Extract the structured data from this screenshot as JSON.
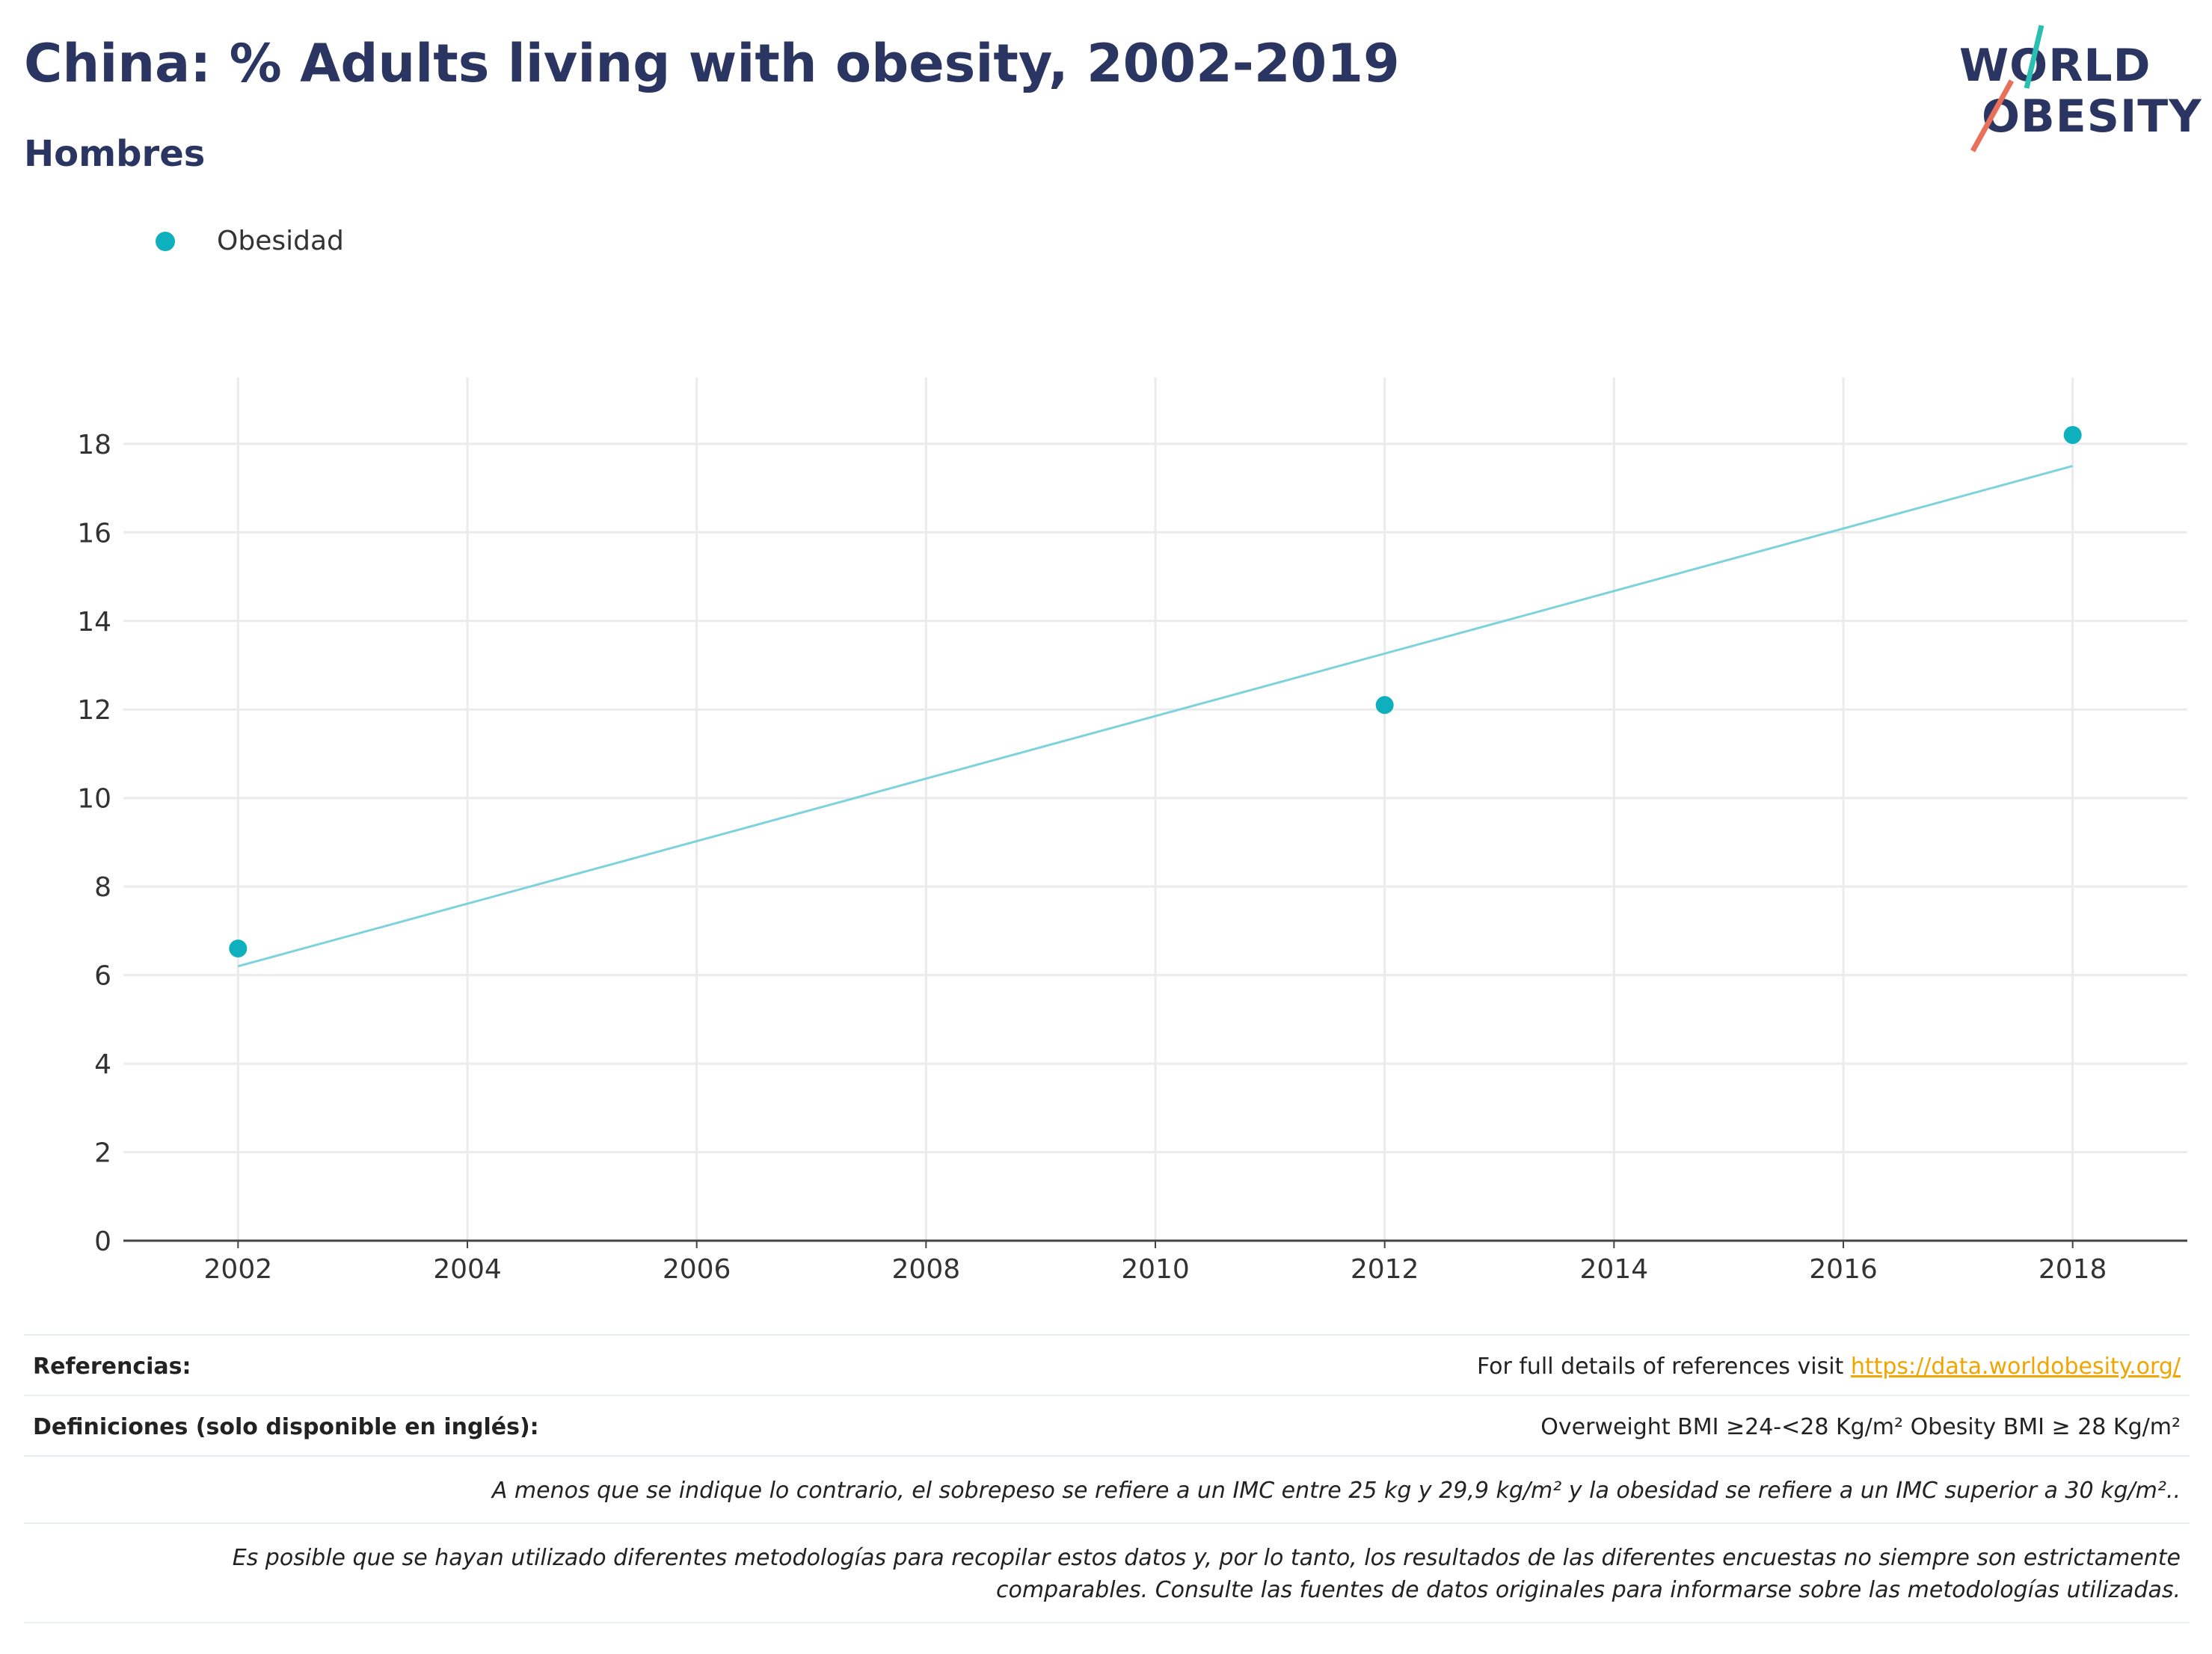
{
  "title": "China: % Adults living with obesity, 2002-2019",
  "subtitle": "Hombres",
  "logo": {
    "line1": "WORLD",
    "line2": "OBESITY",
    "teal": "#2bbfb3",
    "coral": "#e8705a"
  },
  "legend": {
    "label": "Obesidad",
    "color": "#0eb0bd"
  },
  "chart_data": {
    "type": "scatter",
    "x": [
      2002,
      2012,
      2018
    ],
    "series": [
      {
        "name": "Obesidad",
        "values": [
          6.6,
          12.1,
          18.2
        ],
        "color": "#0eb0bd"
      }
    ],
    "trendline": {
      "x": [
        2002,
        2018
      ],
      "y": [
        6.2,
        17.5
      ],
      "color": "#7dd3dc"
    },
    "xlim": [
      2001,
      2019
    ],
    "ylim": [
      0,
      19.5
    ],
    "xticks": [
      2002,
      2004,
      2006,
      2008,
      2010,
      2012,
      2014,
      2016,
      2018
    ],
    "yticks": [
      0,
      2,
      4,
      6,
      8,
      10,
      12,
      14,
      16,
      18
    ],
    "grid": true,
    "legend_position": "top-left",
    "xlabel": "",
    "ylabel": ""
  },
  "footer": {
    "references_label": "Referencias:",
    "references_text": "For full details of references visit ",
    "references_link": "https://data.worldobesity.org/",
    "definitions_label": "Definiciones (solo disponible en inglés):",
    "definitions_text": "Overweight BMI ≥24-<28 Kg/m² Obesity BMI ≥ 28 Kg/m²",
    "note1": "A menos que se indique lo contrario, el sobrepeso se refiere a un IMC entre 25 kg y 29,9 kg/m² y la obesidad se refiere a un IMC superior a 30 kg/m²..",
    "note2a": "Es posible que se hayan utilizado diferentes metodologías para recopilar estos datos y, por lo tanto, los resultados de las diferentes encuestas no siempre son estrictamente",
    "note2b": "comparables. Consulte las fuentes de datos originales para informarse sobre las metodologías utilizadas."
  }
}
